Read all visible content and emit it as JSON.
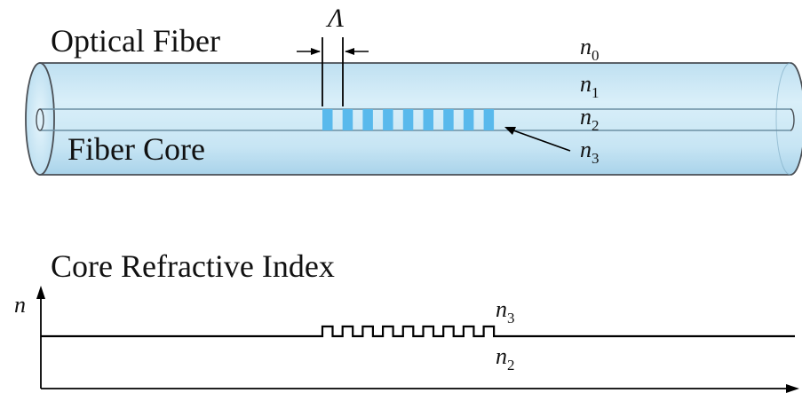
{
  "labels": {
    "optical_fiber": "Optical Fiber",
    "fiber_core": "Fiber Core",
    "core_refractive_index": "Core Refractive Index",
    "lambda": "Λ"
  },
  "fiber_indices": {
    "n0": {
      "sym": "n",
      "sub": "0"
    },
    "n1": {
      "sym": "n",
      "sub": "1"
    },
    "n2": {
      "sym": "n",
      "sub": "2"
    },
    "n3": {
      "sym": "n",
      "sub": "3"
    }
  },
  "plot": {
    "y_axis": "n",
    "high": {
      "sym": "n",
      "sub": "3"
    },
    "low": {
      "sym": "n",
      "sub": "2"
    }
  },
  "grating_periods": 9,
  "colors": {
    "cladding": "#c9e6f4",
    "cladding_edge": "#4a4f55",
    "grating": "#59b9ec",
    "line": "#000000"
  }
}
